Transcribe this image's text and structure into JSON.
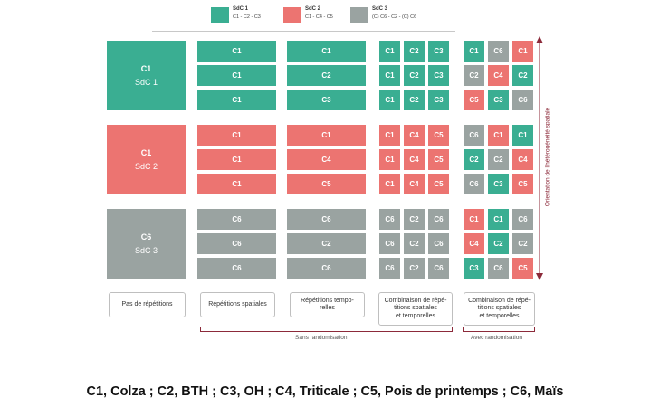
{
  "legend": [
    {
      "title": "SdC 1",
      "sub": "C1 - C2 - C3",
      "color": "#3aae92"
    },
    {
      "title": "SdC 2",
      "sub": "C1 - C4 - C5",
      "color": "#ec7471"
    },
    {
      "title": "SdC 3",
      "sub": "(C) C6 - C2 - (C) C6",
      "color": "#9aa3a1"
    }
  ],
  "systems": [
    {
      "crop": "C1",
      "name": "SdC 1",
      "color": "g"
    },
    {
      "crop": "C1",
      "name": "SdC 2",
      "color": "r"
    },
    {
      "crop": "C6",
      "name": "SdC 3",
      "color": "y"
    }
  ],
  "spatial": [
    [
      {
        "t": "C1",
        "c": "g"
      },
      {
        "t": "C1",
        "c": "g"
      },
      {
        "t": "C1",
        "c": "g"
      }
    ],
    [
      {
        "t": "C1",
        "c": "r"
      },
      {
        "t": "C1",
        "c": "r"
      },
      {
        "t": "C1",
        "c": "r"
      }
    ],
    [
      {
        "t": "C6",
        "c": "y"
      },
      {
        "t": "C6",
        "c": "y"
      },
      {
        "t": "C6",
        "c": "y"
      }
    ]
  ],
  "temporal": [
    [
      {
        "t": "C1",
        "c": "g"
      },
      {
        "t": "C2",
        "c": "g"
      },
      {
        "t": "C3",
        "c": "g"
      }
    ],
    [
      {
        "t": "C1",
        "c": "r"
      },
      {
        "t": "C4",
        "c": "r"
      },
      {
        "t": "C5",
        "c": "r"
      }
    ],
    [
      {
        "t": "C6",
        "c": "y"
      },
      {
        "t": "C2",
        "c": "y"
      },
      {
        "t": "C6",
        "c": "y"
      }
    ]
  ],
  "combined": [
    [
      [
        {
          "t": "C1",
          "c": "g"
        },
        {
          "t": "C2",
          "c": "g"
        },
        {
          "t": "C3",
          "c": "g"
        }
      ],
      [
        {
          "t": "C1",
          "c": "g"
        },
        {
          "t": "C2",
          "c": "g"
        },
        {
          "t": "C3",
          "c": "g"
        }
      ],
      [
        {
          "t": "C1",
          "c": "g"
        },
        {
          "t": "C2",
          "c": "g"
        },
        {
          "t": "C3",
          "c": "g"
        }
      ]
    ],
    [
      [
        {
          "t": "C1",
          "c": "r"
        },
        {
          "t": "C4",
          "c": "r"
        },
        {
          "t": "C5",
          "c": "r"
        }
      ],
      [
        {
          "t": "C1",
          "c": "r"
        },
        {
          "t": "C4",
          "c": "r"
        },
        {
          "t": "C5",
          "c": "r"
        }
      ],
      [
        {
          "t": "C1",
          "c": "r"
        },
        {
          "t": "C4",
          "c": "r"
        },
        {
          "t": "C5",
          "c": "r"
        }
      ]
    ],
    [
      [
        {
          "t": "C6",
          "c": "y"
        },
        {
          "t": "C2",
          "c": "y"
        },
        {
          "t": "C6",
          "c": "y"
        }
      ],
      [
        {
          "t": "C6",
          "c": "y"
        },
        {
          "t": "C2",
          "c": "y"
        },
        {
          "t": "C6",
          "c": "y"
        }
      ],
      [
        {
          "t": "C6",
          "c": "y"
        },
        {
          "t": "C2",
          "c": "y"
        },
        {
          "t": "C6",
          "c": "y"
        }
      ]
    ]
  ],
  "randomized": [
    [
      [
        {
          "t": "C1",
          "c": "g"
        },
        {
          "t": "C6",
          "c": "y"
        },
        {
          "t": "C1",
          "c": "r"
        }
      ],
      [
        {
          "t": "C2",
          "c": "y"
        },
        {
          "t": "C4",
          "c": "r"
        },
        {
          "t": "C2",
          "c": "g"
        }
      ],
      [
        {
          "t": "C5",
          "c": "r"
        },
        {
          "t": "C3",
          "c": "g"
        },
        {
          "t": "C6",
          "c": "y"
        }
      ]
    ],
    [
      [
        {
          "t": "C6",
          "c": "y"
        },
        {
          "t": "C1",
          "c": "r"
        },
        {
          "t": "C1",
          "c": "g"
        }
      ],
      [
        {
          "t": "C2",
          "c": "g"
        },
        {
          "t": "C2",
          "c": "y"
        },
        {
          "t": "C4",
          "c": "r"
        }
      ],
      [
        {
          "t": "C6",
          "c": "y"
        },
        {
          "t": "C3",
          "c": "g"
        },
        {
          "t": "C5",
          "c": "r"
        }
      ]
    ],
    [
      [
        {
          "t": "C1",
          "c": "r"
        },
        {
          "t": "C1",
          "c": "g"
        },
        {
          "t": "C6",
          "c": "y"
        }
      ],
      [
        {
          "t": "C4",
          "c": "r"
        },
        {
          "t": "C2",
          "c": "g"
        },
        {
          "t": "C2",
          "c": "y"
        }
      ],
      [
        {
          "t": "C3",
          "c": "g"
        },
        {
          "t": "C6",
          "c": "y"
        },
        {
          "t": "C5",
          "c": "r"
        }
      ]
    ]
  ],
  "column_labels": [
    "Pas de répétitions",
    "Répétitions spatiales",
    "Répétitions tempo-\nrelles",
    "Combinaison de répé-\ntitions spatiales\net temporelles",
    "Combinaison de répé-\ntitions spatiales\net temporelles"
  ],
  "bracket_labels": {
    "left": "Sans randomisation",
    "right": "Avec randomisation"
  },
  "vertical_label": "Orientation de l'hétérogénéité spatiale",
  "caption": "C1, Colza ; C2, BTH ; C3, OH ; C4, Triticale ; C5, Pois de printemps ; C6, Maïs"
}
